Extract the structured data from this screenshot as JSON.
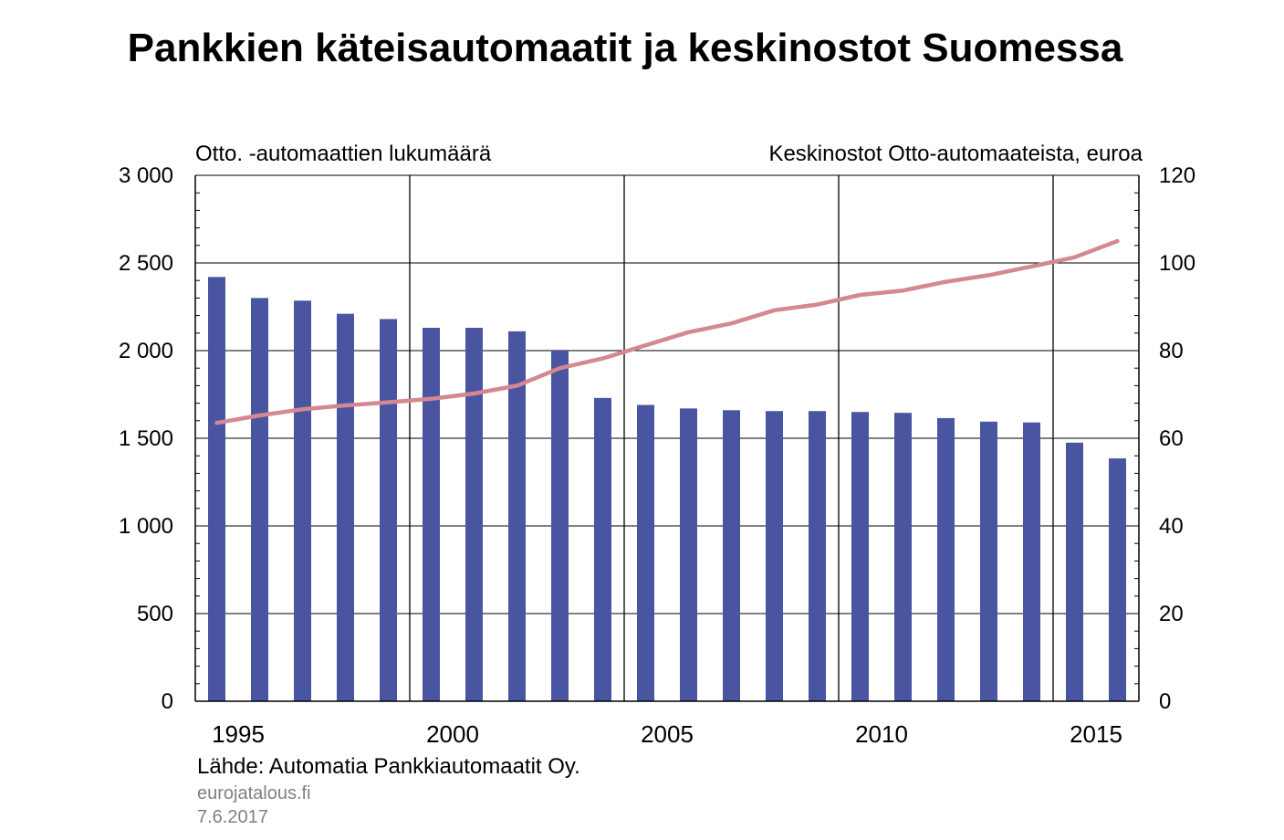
{
  "title": "Pankkien käteisautomaatit ja keskinostot Suomessa",
  "source": "Lähde: Automatia Pankkiautomaatit Oy.",
  "site": "eurojatalous.fi",
  "date": "7.6.2017",
  "chart_data": {
    "type": "bar",
    "left_axis_label": "Otto. -automaattien lukumäärä",
    "right_axis_label": "Keskinostot Otto-automaateista, euroa",
    "left_ylim": [
      0,
      3000
    ],
    "right_ylim": [
      0,
      120
    ],
    "left_ticks": [
      0,
      500,
      1000,
      1500,
      2000,
      2500,
      3000
    ],
    "left_tick_labels": [
      "0",
      "500",
      "1 000",
      "1 500",
      "2 000",
      "2 500",
      "3 000"
    ],
    "right_ticks": [
      0,
      20,
      40,
      60,
      80,
      100,
      120
    ],
    "right_tick_labels": [
      "0",
      "20",
      "40",
      "60",
      "80",
      "100",
      "120"
    ],
    "x_labels": [
      "1995",
      "2000",
      "2005",
      "2010",
      "2015"
    ],
    "grid": true,
    "colors": {
      "bars": "#4a55a2",
      "line": "#d4888f",
      "grid": "#000000"
    },
    "series": [
      {
        "type": "bar",
        "axis": "left",
        "x": [
          1994.5,
          1995.5,
          1996.5,
          1997.5,
          1998.5,
          1999.5,
          2000.5,
          2001.5,
          2002.5,
          2003.5,
          2004.5,
          2005.5,
          2006.5,
          2007.5,
          2008.5,
          2009.5,
          2010.5,
          2011.5,
          2012.5,
          2013.5,
          2014.5,
          2015.5
        ],
        "values": [
          2420,
          2300,
          2285,
          2210,
          2180,
          2130,
          2130,
          2110,
          2000,
          1730,
          1690,
          1670,
          1660,
          1655,
          1655,
          1650,
          1645,
          1615,
          1595,
          1590,
          1475,
          1385
        ]
      },
      {
        "type": "line",
        "axis": "right",
        "x": [
          1994.5,
          1995.5,
          1996.5,
          1997.5,
          1998.5,
          1999.5,
          2000.5,
          2001.5,
          2002.5,
          2003.5,
          2004.5,
          2005.5,
          2006.5,
          2007.5,
          2008.5,
          2009.5,
          2010.5,
          2011.5,
          2012.5,
          2013.5,
          2014.5,
          2015.5
        ],
        "values": [
          63.5,
          65.2,
          66.6,
          67.5,
          68.2,
          69.0,
          70.2,
          72.0,
          76.0,
          78.2,
          81.2,
          84.2,
          86.2,
          89.2,
          90.5,
          92.7,
          93.7,
          95.7,
          97.2,
          99.2,
          101.3,
          105.0
        ]
      }
    ]
  }
}
